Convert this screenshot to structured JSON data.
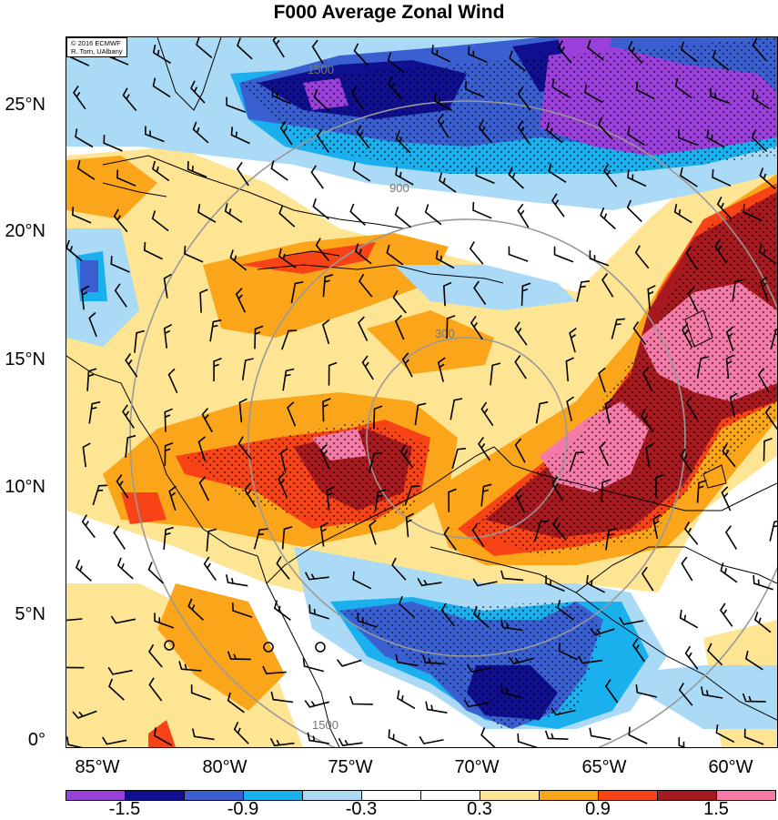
{
  "title": "F000 Average Zonal Wind",
  "credit": [
    "© 2016 ECMWF",
    "R. Torn, UAlbany"
  ],
  "lat_labels": [
    "25°N",
    "20°N",
    "15°N",
    "10°N",
    "5°N",
    "0°"
  ],
  "lon_labels": [
    "85°W",
    "80°W",
    "75°W",
    "70°W",
    "65°W",
    "60°W"
  ],
  "colorbar": {
    "colors": [
      "#9b3fdb",
      "#0f0f8f",
      "#3a5fd0",
      "#1ab0ee",
      "#aadaf5",
      "#ffffff",
      "#ffffff",
      "#fde593",
      "#fba51b",
      "#f74316",
      "#a6191e",
      "#f47ba8"
    ],
    "labels": [
      "-1.5",
      "-0.9",
      "-0.3",
      "0.3",
      "0.9",
      "1.5"
    ]
  },
  "range_ring_labels": [
    "300",
    "900",
    "1500"
  ],
  "map": {
    "lat_range": [
      0,
      27.5
    ],
    "lon_range": [
      -86,
      -58
    ],
    "stippling": "dotted where significant",
    "wind_barbs": true
  }
}
